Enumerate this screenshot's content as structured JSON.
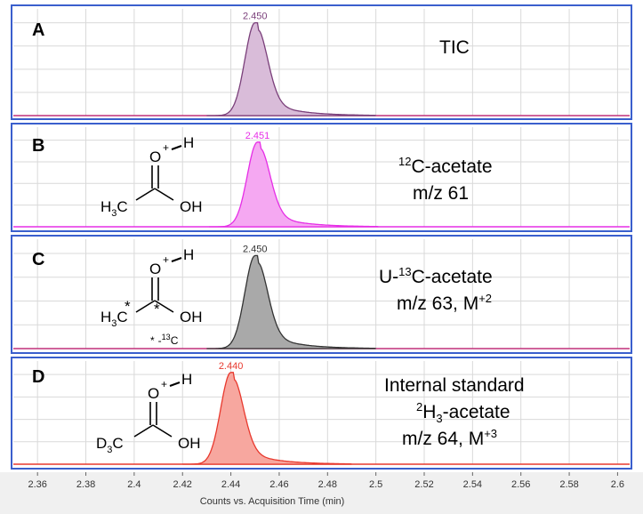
{
  "chart_data": {
    "type": "line",
    "xlabel": "Counts vs. Acquisition Time (min)",
    "xlim": [
      2.35,
      2.605
    ],
    "x_ticks": [
      "2.36",
      "2.38",
      "2.4",
      "2.42",
      "2.44",
      "2.46",
      "2.48",
      "2.5",
      "2.52",
      "2.54",
      "2.56",
      "2.58",
      "2.6"
    ],
    "grid": true,
    "panels": [
      {
        "panel_label": "A",
        "title": "TIC",
        "apex_label": "2.450",
        "apex_time": 2.45,
        "peak_color": "#7a3f7a",
        "fill_color": "#d9bcd9",
        "baseline_color": "#c0307a",
        "relative_height": 0.87
      },
      {
        "panel_label": "B",
        "title": "12C-acetate",
        "title_main": "C-acetate",
        "title_sup": "12",
        "subtitle": "m/z 61",
        "apex_label": "2.451",
        "apex_time": 2.451,
        "peak_color": "#e62ee6",
        "fill_color": "#f5a8f2",
        "baseline_color": "#e62ee6",
        "relative_height": 0.85,
        "molecule": {
          "proton": "+",
          "h": "H",
          "o_top": "O",
          "oh": "OH",
          "methyl": "H",
          "methyl_sub": "3",
          "methyl_c": "C"
        }
      },
      {
        "panel_label": "C",
        "title": "U-13C-acetate",
        "title_pre": "U-",
        "title_sup": "13",
        "title_main": "C-acetate",
        "subtitle": "m/z 63, M+2",
        "subtitle_main": "m/z 63, M",
        "subtitle_sup": "+2",
        "apex_label": "2.450",
        "apex_time": 2.45,
        "peak_color": "#333333",
        "fill_color": "#a9a9a9",
        "baseline_color": "#c0307a",
        "relative_height": 0.85,
        "molecule": {
          "proton": "+",
          "h": "H",
          "o_top": "O",
          "oh": "OH",
          "methyl": "H",
          "methyl_sub": "3",
          "methyl_c": "C",
          "star": "*",
          "note_star": "*",
          "note_sup": "13",
          "note_c": "C",
          "note_dash": "-"
        }
      },
      {
        "panel_label": "D",
        "title": "Internal standard",
        "subtitle": "2H3-acetate",
        "subtitle_sup": "2",
        "subtitle_h": "H",
        "subtitle_sub": "3",
        "subtitle_main": "-acetate",
        "subtitle2": "m/z 64, M+3",
        "subtitle2_main": "m/z 64, M",
        "subtitle2_sup": "+3",
        "apex_label": "2.440",
        "apex_time": 2.44,
        "peak_color": "#e8392e",
        "fill_color": "#f7a79f",
        "baseline_color": "#e8392e",
        "relative_height": 0.89,
        "molecule": {
          "proton": "+",
          "h": "H",
          "o_top": "O",
          "oh": "OH",
          "methyl": "D",
          "methyl_sub": "3",
          "methyl_c": "C"
        }
      }
    ]
  },
  "colors": {
    "panel_border": "#3a5fcd",
    "grid": "#d9d9d9",
    "axis_bg": "#f0f0f0"
  }
}
